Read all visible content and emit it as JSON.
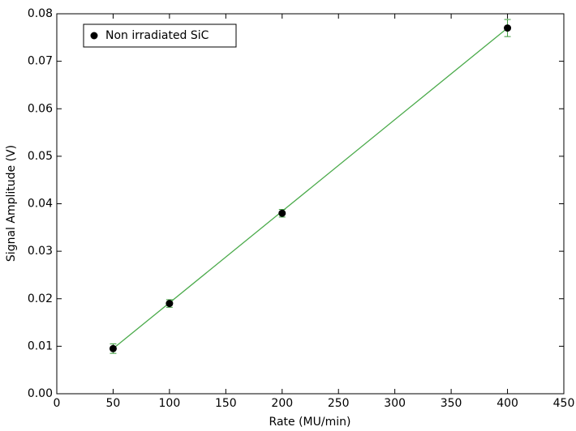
{
  "chart_data": {
    "type": "scatter",
    "xlabel": "Rate (MU/min)",
    "ylabel": "Signal Amplitude (V)",
    "xlim": [
      0,
      450
    ],
    "xticks": [
      0,
      50,
      100,
      150,
      200,
      250,
      300,
      350,
      400,
      450
    ],
    "ylim": [
      0,
      0.08
    ],
    "yticks": [
      {
        "value": 0,
        "label": "0.00"
      },
      {
        "value": 0.01,
        "label": "0.01"
      },
      {
        "value": 0.02,
        "label": "0.02"
      },
      {
        "value": 0.03,
        "label": "0.03"
      },
      {
        "value": 0.04,
        "label": "0.04"
      },
      {
        "value": 0.05,
        "label": "0.05"
      },
      {
        "value": 0.06,
        "label": "0.06"
      },
      {
        "value": 0.07,
        "label": "0.07"
      },
      {
        "value": 0.08,
        "label": "0.08"
      }
    ],
    "legend": "upper left",
    "series": [
      {
        "name": "Non irradiated SiC",
        "color": "#000000",
        "error_color": "#3a9a3a",
        "x": [
          50,
          100,
          200,
          400
        ],
        "values": [
          0.0095,
          0.019,
          0.038,
          0.077
        ],
        "errors": [
          0.001,
          0.0008,
          0.0008,
          0.0018
        ]
      },
      {
        "color": "#4aaa4a",
        "line": true,
        "x": [
          50,
          400
        ],
        "values": [
          0.0095,
          0.077
        ]
      }
    ]
  }
}
